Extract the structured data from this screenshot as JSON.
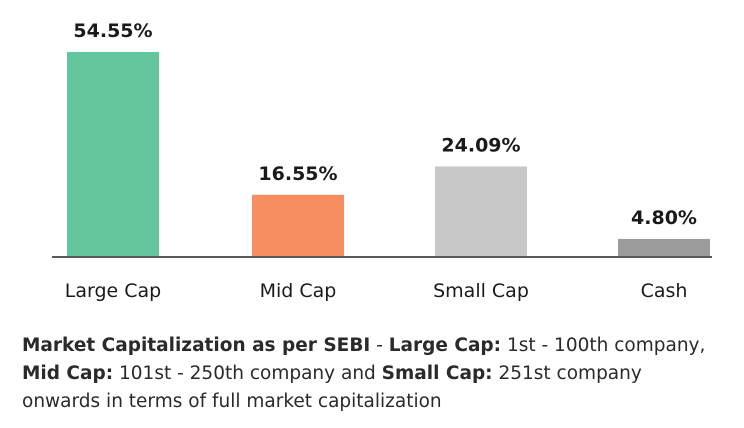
{
  "chart_data": {
    "type": "bar",
    "categories": [
      "Large Cap",
      "Mid Cap",
      "Small Cap",
      "Cash"
    ],
    "values": [
      54.55,
      16.55,
      24.09,
      4.8
    ],
    "value_labels": [
      "54.55%",
      "16.55%",
      "24.09%",
      "4.80%"
    ],
    "colors": [
      "#63c69d",
      "#f98d62",
      "#c8c8c8",
      "#9c9c9c"
    ],
    "baseline_color": "#5a5a5a",
    "ylim": [
      0,
      54.55
    ],
    "grid": false,
    "title": "",
    "xlabel": "",
    "ylabel": ""
  },
  "footnote": {
    "title": "Market Capitalization as per SEBI",
    "sep1": " - ",
    "large_label": "Large Cap:",
    "large_text": " 1st - 100th company, ",
    "mid_label": "Mid Cap:",
    "mid_text": " 101st - 250th company and ",
    "small_label": "Small Cap:",
    "small_text": " 251st company onwards in terms of full market capitalization"
  }
}
